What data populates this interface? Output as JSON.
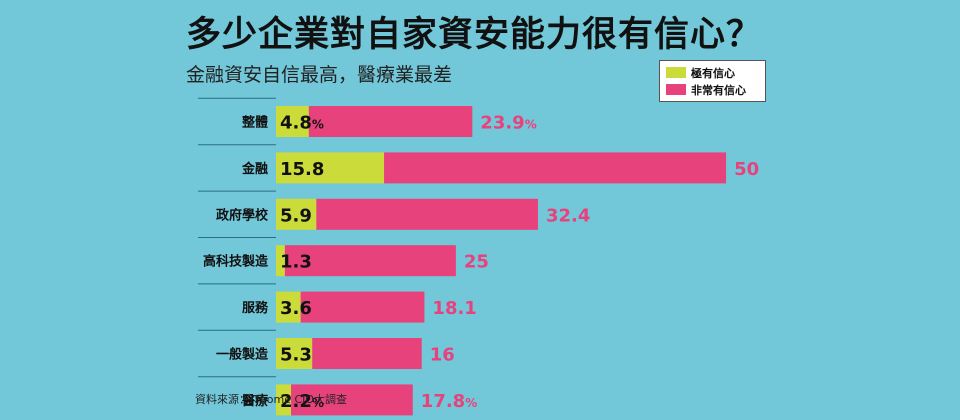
{
  "chart_data": {
    "type": "bar",
    "orientation": "horizontal",
    "stacked": true,
    "title": "多少企業對自家資安能力很有信心？",
    "subtitle": "金融資安自信最高，醫療業最差",
    "categories": [
      "整體",
      "金融",
      "政府學校",
      "高科技製造",
      "服務",
      "一般製造",
      "醫療"
    ],
    "series": [
      {
        "name": "極有信心",
        "color": "#cbdb3a",
        "values": [
          4.8,
          15.8,
          5.9,
          1.3,
          3.6,
          5.3,
          2.2
        ]
      },
      {
        "name": "非常有信心",
        "color": "#e8427c",
        "values": [
          23.9,
          50,
          32.4,
          25,
          18.1,
          16,
          17.8
        ]
      }
    ],
    "value_labels": {
      "inner": [
        "4.8",
        "15.8",
        "5.9",
        "1.3",
        "3.6",
        "5.3",
        "2.2"
      ],
      "outer": [
        "23.9",
        "50",
        "32.4",
        "25",
        "18.1",
        "16",
        "17.8"
      ],
      "percent_sign": "%",
      "percent_rows": [
        0,
        6
      ]
    },
    "legend_position": "top-right",
    "grid": false,
    "source": "資料來源：iThome CIO大調查"
  }
}
